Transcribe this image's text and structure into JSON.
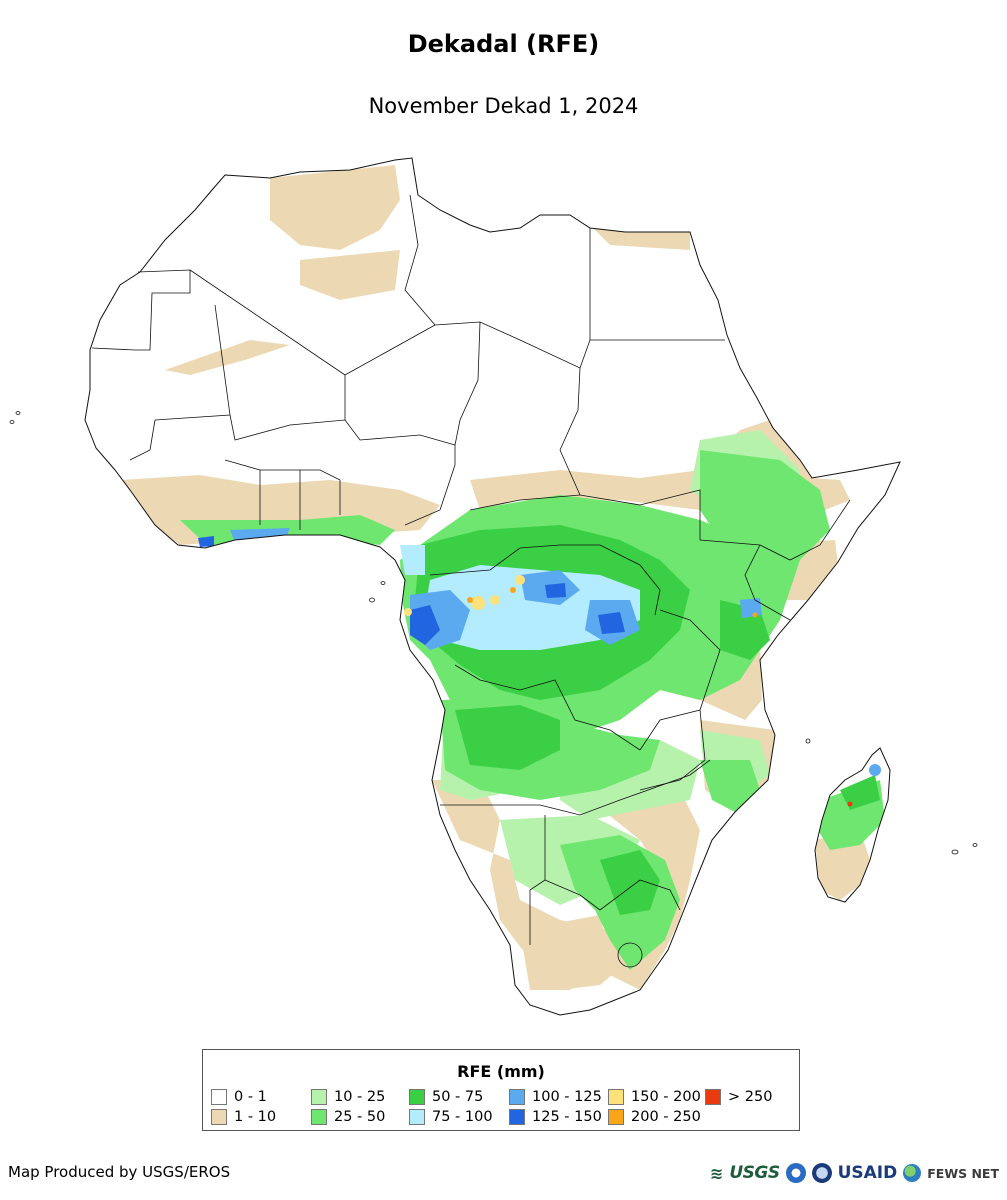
{
  "map": {
    "title": "Dekadal (RFE)",
    "subtitle": "November Dekad 1, 2024",
    "region": "Africa"
  },
  "legend": {
    "title": "RFE (mm)",
    "items": [
      {
        "label": "0 - 1",
        "color": "#ffffff"
      },
      {
        "label": "1 - 10",
        "color": "#ecd9b4"
      },
      {
        "label": "10 - 25",
        "color": "#b7f2ad"
      },
      {
        "label": "25 - 50",
        "color": "#6fe670"
      },
      {
        "label": "50 - 75",
        "color": "#3bcf45"
      },
      {
        "label": "75 - 100",
        "color": "#b3ecff"
      },
      {
        "label": "100 - 125",
        "color": "#5ba9ef"
      },
      {
        "label": "125 - 150",
        "color": "#2166e0"
      },
      {
        "label": "150 - 200",
        "color": "#fde27c"
      },
      {
        "label": "200 - 250",
        "color": "#f9a51a"
      },
      {
        "label": "> 250",
        "color": "#ea3a0f"
      }
    ]
  },
  "footer": {
    "credit": "Map Produced by USGS/EROS",
    "logos": {
      "usgs": "USGS",
      "usaid": "USAID",
      "fewsnet": "FEWS NET"
    }
  }
}
